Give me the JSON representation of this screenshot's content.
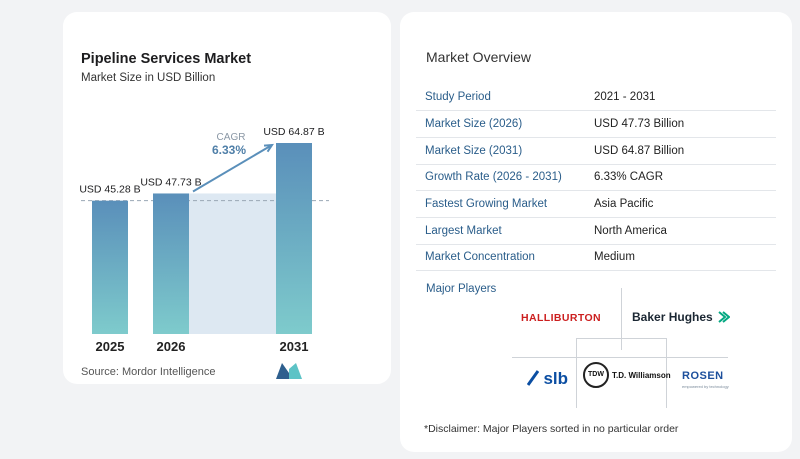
{
  "chart_panel": {
    "title": "Pipeline Services Market",
    "subtitle": "Market Size in USD Billion",
    "source": "Source: Mordor Intelligence",
    "cagr_label": "CAGR",
    "cagr_value": "6.33%"
  },
  "chart_data": {
    "type": "bar",
    "categories": [
      "2025",
      "2026",
      "2031"
    ],
    "values": [
      45.28,
      47.73,
      64.87
    ],
    "value_labels": [
      "USD 45.28 B",
      "USD 47.73 B",
      "USD 64.87 B"
    ],
    "title": "Pipeline Services Market",
    "subtitle": "Market Size in USD Billion",
    "annotation": "CAGR 6.33%",
    "colors": {
      "bar_top": "#5a8fba",
      "bar_bottom": "#7ecbcc",
      "arrow": "#5a8fba",
      "band": "#dde8f2"
    }
  },
  "overview": {
    "title": "Market Overview",
    "rows": [
      {
        "key": "Study Period",
        "value": "2021 - 2031"
      },
      {
        "key": "Market Size (2026)",
        "value": "USD 47.73 Billion"
      },
      {
        "key": "Market Size (2031)",
        "value": "USD 64.87 Billion"
      },
      {
        "key": "Growth Rate (2026 - 2031)",
        "value": "6.33% CAGR"
      },
      {
        "key": "Fastest Growing Market",
        "value": "Asia Pacific"
      },
      {
        "key": "Largest Market",
        "value": "North America"
      },
      {
        "key": "Market Concentration",
        "value": "Medium"
      }
    ]
  },
  "players": {
    "title": "Major Players",
    "halliburton": "HALLIBURTON",
    "baker_hughes": "Baker Hughes",
    "slb": "slb",
    "tdw_badge": "TDW",
    "tdw": "T.D. Williamson",
    "rosen": "ROSEN",
    "rosen_tagline": "empowered by technology"
  },
  "disclaimer": "*Disclaimer: Major Players sorted in no particular order"
}
